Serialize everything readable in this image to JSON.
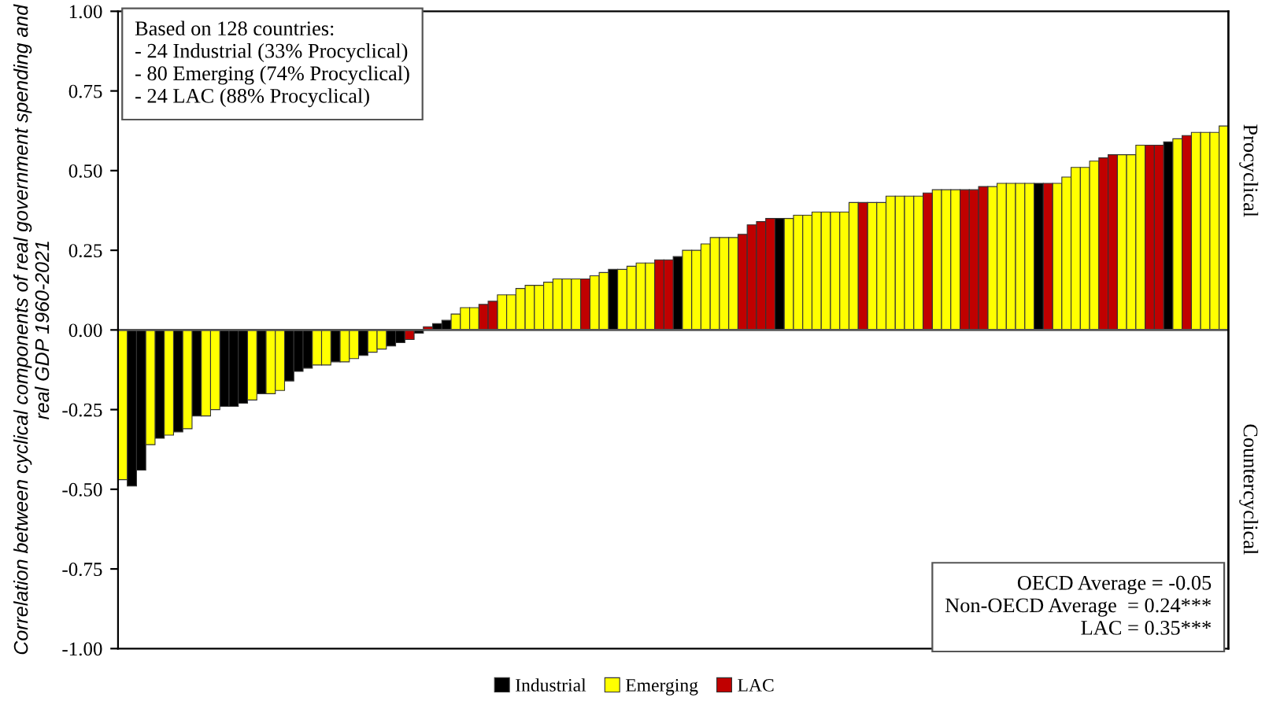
{
  "chart_data": {
    "type": "bar",
    "ylabel": "Correlation between cyclical components of real government spending and real GDP 1960-2021",
    "categories": [
      null,
      null,
      null,
      null,
      null,
      null,
      null,
      null,
      null,
      null,
      null,
      null,
      null,
      null,
      null,
      null,
      null,
      null,
      null,
      null,
      null,
      null,
      null,
      null,
      null,
      null,
      null,
      null,
      null,
      null,
      null,
      null,
      null,
      null,
      null,
      null,
      null,
      null,
      null,
      null,
      null,
      null,
      null,
      null,
      null,
      null,
      null,
      null,
      null,
      null,
      null,
      null,
      null,
      null,
      null,
      null,
      null,
      null,
      null,
      null,
      null,
      null,
      null,
      null,
      null,
      null,
      null,
      null,
      null,
      null,
      null,
      null,
      null,
      null,
      null,
      null,
      null,
      null,
      null,
      null,
      null,
      null,
      null,
      null,
      null,
      null,
      null,
      null,
      null,
      null,
      null,
      null,
      null,
      null,
      null,
      null,
      null,
      null,
      null,
      null,
      null,
      null,
      null,
      null,
      null,
      null,
      null,
      null,
      null,
      null,
      null,
      null,
      null,
      null,
      null,
      null,
      null,
      null,
      null,
      null
    ],
    "series": [
      {
        "name": "Industrial",
        "color": "#000000",
        "values": [
          null,
          -0.49,
          -0.44,
          null,
          -0.34,
          null,
          -0.32,
          null,
          -0.27,
          null,
          null,
          -0.24,
          -0.24,
          -0.23,
          null,
          -0.2,
          null,
          null,
          -0.16,
          -0.13,
          -0.12,
          null,
          null,
          -0.1,
          null,
          null,
          -0.08,
          null,
          null,
          -0.05,
          -0.04,
          null,
          -0.01,
          null,
          0.02,
          0.03,
          null,
          null,
          null,
          null,
          null,
          null,
          null,
          null,
          null,
          null,
          null,
          null,
          null,
          null,
          null,
          null,
          null,
          0.19,
          null,
          null,
          null,
          null,
          null,
          null,
          0.23,
          null,
          null,
          null,
          null,
          null,
          null,
          null,
          null,
          null,
          null,
          0.35,
          null,
          null,
          null,
          null,
          null,
          null,
          null,
          null,
          null,
          null,
          null,
          null,
          null,
          null,
          null,
          null,
          null,
          null,
          null,
          null,
          null,
          null,
          null,
          null,
          null,
          null,
          null,
          0.46,
          null,
          null,
          null,
          null,
          null,
          null,
          null,
          null,
          null,
          null,
          null,
          null,
          null,
          0.59,
          null,
          null,
          null,
          null,
          null,
          null
        ]
      },
      {
        "name": "Emerging",
        "color": "#ffff00",
        "values": [
          -0.47,
          null,
          null,
          -0.36,
          null,
          -0.33,
          null,
          -0.31,
          null,
          -0.27,
          -0.25,
          null,
          null,
          null,
          -0.22,
          null,
          -0.2,
          -0.19,
          null,
          null,
          null,
          -0.11,
          -0.11,
          null,
          -0.1,
          -0.09,
          null,
          -0.07,
          -0.06,
          null,
          null,
          null,
          null,
          null,
          null,
          null,
          0.05,
          0.07,
          0.07,
          null,
          null,
          0.11,
          0.11,
          0.13,
          0.14,
          0.14,
          0.15,
          0.16,
          0.16,
          0.16,
          null,
          0.17,
          0.18,
          null,
          0.19,
          0.2,
          0.21,
          0.21,
          null,
          null,
          null,
          0.25,
          0.25,
          0.27,
          0.29,
          0.29,
          0.29,
          null,
          null,
          null,
          null,
          null,
          0.35,
          0.36,
          0.36,
          0.37,
          0.37,
          0.37,
          0.37,
          0.4,
          null,
          0.4,
          0.4,
          0.42,
          0.42,
          0.42,
          0.42,
          null,
          0.44,
          0.44,
          0.44,
          null,
          null,
          null,
          0.45,
          0.46,
          0.46,
          0.46,
          0.46,
          null,
          null,
          0.46,
          0.48,
          0.51,
          0.51,
          0.53,
          null,
          null,
          0.55,
          0.55,
          0.58,
          null,
          null,
          null,
          0.6,
          null,
          0.62,
          0.62,
          0.62,
          0.64
        ]
      },
      {
        "name": "LAC",
        "color": "#c00000",
        "values": [
          null,
          null,
          null,
          null,
          null,
          null,
          null,
          null,
          null,
          null,
          null,
          null,
          null,
          null,
          null,
          null,
          null,
          null,
          null,
          null,
          null,
          null,
          null,
          null,
          null,
          null,
          null,
          null,
          null,
          null,
          null,
          -0.03,
          null,
          0.01,
          null,
          null,
          null,
          null,
          null,
          0.08,
          0.09,
          null,
          null,
          null,
          null,
          null,
          null,
          null,
          null,
          null,
          0.16,
          null,
          null,
          null,
          null,
          null,
          null,
          null,
          0.22,
          0.22,
          null,
          null,
          null,
          null,
          null,
          null,
          null,
          0.3,
          0.33,
          0.34,
          0.35,
          null,
          null,
          null,
          null,
          null,
          null,
          null,
          null,
          null,
          0.4,
          null,
          null,
          null,
          null,
          null,
          null,
          0.43,
          null,
          null,
          null,
          0.44,
          0.44,
          0.45,
          null,
          null,
          null,
          null,
          null,
          null,
          0.46,
          null,
          null,
          null,
          null,
          null,
          0.54,
          0.55,
          null,
          null,
          null,
          0.58,
          0.58,
          null,
          null,
          0.61,
          null,
          null,
          null,
          null
        ]
      }
    ],
    "ylim": [
      -1,
      1
    ],
    "yticks": [
      {
        "value": -1,
        "label": "-1.00"
      },
      {
        "value": -0.75,
        "label": "-0.75"
      },
      {
        "value": -0.5,
        "label": "-0.50"
      },
      {
        "value": -0.25,
        "label": "-0.25"
      },
      {
        "value": 0,
        "label": "0.00"
      },
      {
        "value": 0.25,
        "label": "0.25"
      },
      {
        "value": 0.5,
        "label": "0.50"
      },
      {
        "value": 0.75,
        "label": "0.75"
      },
      {
        "value": 1,
        "label": "1.00"
      }
    ],
    "annotations": [
      "Based on 128 countries:\n- 24 Industrial (33% Procyclical)\n- 80 Emerging (74% Procyclical)\n- 24 LAC (88% Procyclical)",
      "OECD Average = -0.05\nNon-OECD Average  = 0.24***\nLAC = 0.35***",
      "Procyclical",
      "Countercyclical"
    ],
    "ref_lines": [
      {
        "axis": "y",
        "value": 0,
        "color": "#555555"
      }
    ],
    "grid": false,
    "legend": "bottom",
    "tick_labels": "y"
  }
}
